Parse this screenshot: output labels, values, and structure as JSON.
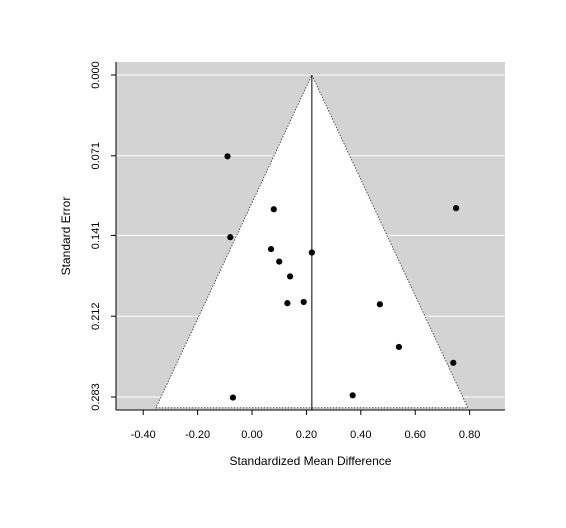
{
  "chart_data": {
    "type": "scatter",
    "subtype": "funnel-plot",
    "xlabel": "Standardized Mean Difference",
    "ylabel": "Standard Error",
    "xlim": [
      -0.5,
      0.93
    ],
    "ylim": [
      0.0,
      0.2925
    ],
    "y_reversed": true,
    "x_ticks": [
      -0.4,
      -0.2,
      0.0,
      0.2,
      0.4,
      0.6,
      0.8
    ],
    "x_tick_labels": [
      "-0.40",
      "-0.20",
      "0.00",
      "0.20",
      "0.40",
      "0.60",
      "0.80"
    ],
    "y_ticks": [
      0.0,
      0.071,
      0.141,
      0.212,
      0.283
    ],
    "y_tick_labels": [
      "0.000",
      "0.071",
      "0.141",
      "0.212",
      "0.283"
    ],
    "summary_estimate": 0.22,
    "funnel_multiplier": 1.96,
    "background_color": "#d3d3d3",
    "funnel_color": "#ffffff",
    "gridlines": "horizontal",
    "points": [
      {
        "x": -0.09,
        "y": 0.0715
      },
      {
        "x": 0.08,
        "y": 0.118
      },
      {
        "x": -0.08,
        "y": 0.1425
      },
      {
        "x": 0.07,
        "y": 0.153
      },
      {
        "x": 0.1,
        "y": 0.164
      },
      {
        "x": 0.14,
        "y": 0.177
      },
      {
        "x": 0.22,
        "y": 0.156
      },
      {
        "x": 0.13,
        "y": 0.2005
      },
      {
        "x": 0.19,
        "y": 0.1995
      },
      {
        "x": 0.47,
        "y": 0.2015
      },
      {
        "x": 0.75,
        "y": 0.117
      },
      {
        "x": 0.54,
        "y": 0.239
      },
      {
        "x": 0.74,
        "y": 0.253
      },
      {
        "x": -0.07,
        "y": 0.2835
      },
      {
        "x": 0.37,
        "y": 0.2815
      }
    ]
  }
}
